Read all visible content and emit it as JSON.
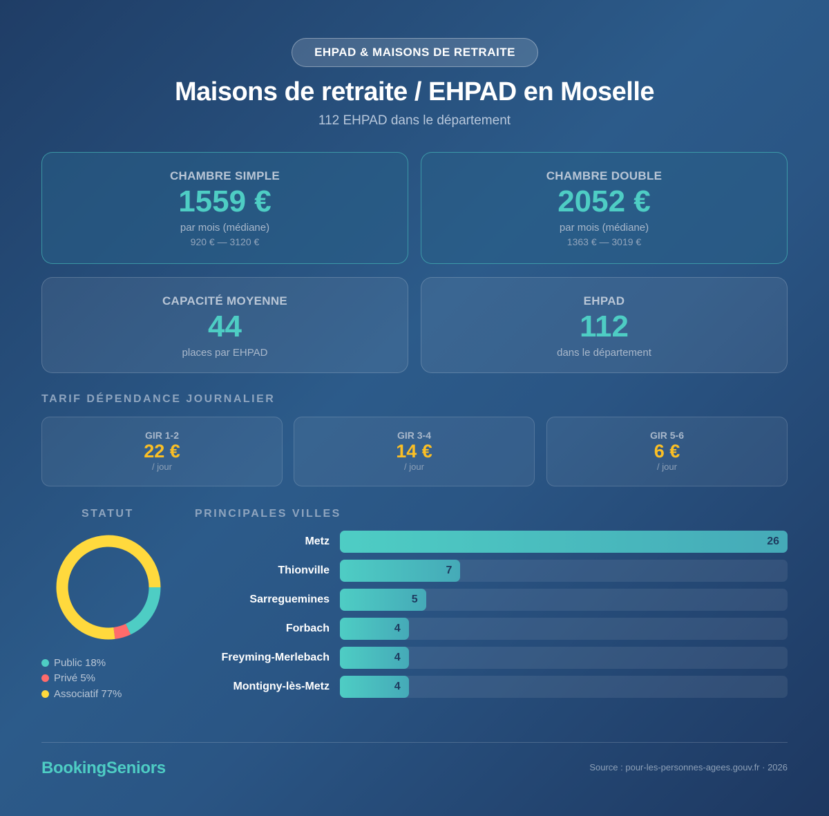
{
  "header": {
    "badge": "EHPAD & MAISONS DE RETRAITE",
    "title": "Maisons de retraite / EHPAD en Moselle",
    "subtitle": "112 EHPAD dans le département"
  },
  "cards": [
    {
      "label": "CHAMBRE SIMPLE",
      "value": "1559 €",
      "sub": "par mois (médiane)",
      "range": "920 € — 3120 €"
    },
    {
      "label": "CHAMBRE DOUBLE",
      "value": "2052 €",
      "sub": "par mois (médiane)",
      "range": "1363 € — 3019 €"
    },
    {
      "label": "CAPACITÉ MOYENNE",
      "value": "44",
      "sub": "places par EHPAD"
    },
    {
      "label": "EHPAD",
      "value": "112",
      "sub": "dans le département"
    }
  ],
  "dependance": {
    "title": "TARIF DÉPENDANCE JOURNALIER",
    "items": [
      {
        "label": "GIR 1-2",
        "value": "22 €",
        "unit": "/ jour"
      },
      {
        "label": "GIR 3-4",
        "value": "14 €",
        "unit": "/ jour"
      },
      {
        "label": "GIR 5-6",
        "value": "6 €",
        "unit": "/ jour"
      }
    ]
  },
  "colors": {
    "accent": "#4ecdc4",
    "gold": "#fbbf24",
    "public": "#4ecdc4",
    "prive": "#ff6b6b",
    "associatif": "#ffd93d"
  },
  "chart_data": [
    {
      "type": "pie",
      "title": "STATUT",
      "donut": true,
      "start": "3 o'clock, clockwise",
      "legend": [
        "Public 18%",
        "Privé 5%",
        "Associatif 77%"
      ],
      "slices": [
        {
          "name": "Public",
          "value": 18,
          "color": "#4ecdc4"
        },
        {
          "name": "Privé",
          "value": 5,
          "color": "#ff6b6b"
        },
        {
          "name": "Associatif",
          "value": 77,
          "color": "#ffd93d"
        }
      ]
    },
    {
      "type": "bar",
      "orientation": "horizontal",
      "title": "PRINCIPALES VILLES",
      "categories": [
        "Metz",
        "Thionville",
        "Sarreguemines",
        "Forbach",
        "Freyming-Merlebach",
        "Montigny-lès-Metz"
      ],
      "values": [
        26,
        7,
        5,
        4,
        4,
        4
      ],
      "xlim": [
        0,
        26
      ]
    }
  ],
  "footer": {
    "brand": "BookingSeniors",
    "source": "Source : pour-les-personnes-agees.gouv.fr · 2026"
  }
}
